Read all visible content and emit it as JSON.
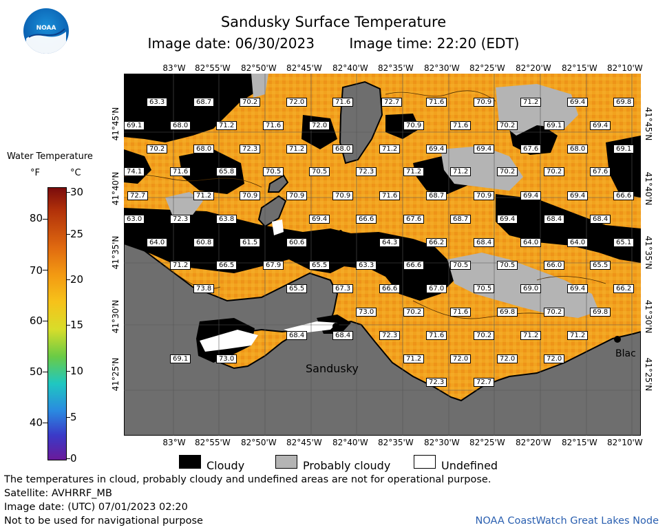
{
  "header": {
    "logo_text": "NOAA",
    "title": "Sandusky Surface Temperature",
    "image_date_local": "Image date: 06/30/2023",
    "image_time_local": "Image time: 22:20 (EDT)"
  },
  "colorbar": {
    "title": "Water Temperature",
    "unit_f": "°F",
    "unit_c": "°C",
    "f_ticks": [
      "80",
      "70",
      "60",
      "50",
      "40"
    ],
    "c_ticks": [
      "30",
      "25",
      "20",
      "15",
      "10",
      "5",
      "0"
    ]
  },
  "axes": {
    "lon_labels": [
      "83°W",
      "82°55'W",
      "82°50'W",
      "82°45'W",
      "82°40'W",
      "82°35'W",
      "82°30'W",
      "82°25'W",
      "82°20'W",
      "82°15'W",
      "82°10'W"
    ],
    "lat_labels": [
      "41°45'N",
      "41°40'N",
      "41°35'N",
      "41°30'N",
      "41°25'N"
    ]
  },
  "places": {
    "sandusky": "Sandusky",
    "blac": "Blac"
  },
  "temperature_labels": [
    "63.3",
    "68.7",
    "70.2",
    "72.0",
    "71.6",
    "72.7",
    "71.6",
    "70.9",
    "71.2",
    "69.4",
    "69.8",
    "69.1",
    "68.0",
    "71.2",
    "71.6",
    "72.0",
    "70.9",
    "71.6",
    "70.2",
    "69.1",
    "69.4",
    "70.2",
    "68.0",
    "72.3",
    "71.2",
    "68.0",
    "71.2",
    "69.4",
    "69.4",
    "67.6",
    "68.0",
    "69.1",
    "74.1",
    "71.6",
    "65.8",
    "70.5",
    "70.5",
    "72.3",
    "71.2",
    "71.2",
    "70.2",
    "70.2",
    "67.6",
    "72.7",
    "71.2",
    "70.9",
    "70.9",
    "70.9",
    "71.6",
    "68.7",
    "70.9",
    "69.4",
    "69.4",
    "66.6",
    "63.0",
    "72.3",
    "63.8",
    "69.4",
    "66.6",
    "67.6",
    "68.7",
    "69.4",
    "68.4",
    "68.4",
    "64.0",
    "60.8",
    "61.5",
    "60.6",
    "64.3",
    "66.2",
    "68.4",
    "64.0",
    "64.0",
    "65.1",
    "71.2",
    "66.5",
    "67.9",
    "65.5",
    "63.3",
    "66.6",
    "70.5",
    "70.5",
    "66.0",
    "65.5",
    "73.8",
    "65.5",
    "67.3",
    "66.6",
    "67.0",
    "70.5",
    "69.0",
    "69.4",
    "66.2",
    "73.0",
    "70.2",
    "71.6",
    "69.8",
    "70.2",
    "69.8",
    "68.4",
    "68.4",
    "72.3",
    "71.6",
    "70.2",
    "71.2",
    "71.2",
    "69.1",
    "73.0",
    "71.2",
    "72.0",
    "72.0",
    "72.0",
    "72.3",
    "72.7"
  ],
  "legend": {
    "cloudy": "Cloudy",
    "probably_cloudy": "Probably cloudy",
    "undefined": "Undefined"
  },
  "notes": {
    "disclaimer": "The temperatures in cloud, probably cloudy and undefined areas are not for operational purpose.",
    "satellite": "Satellite: AVHRRF_MB",
    "utc_date": "Image date: (UTC) 07/01/2023  02:20",
    "nav": "Not to be used for navigational purpose",
    "credit": "NOAA CoastWatch Great Lakes Node"
  },
  "colors": {
    "water_warm": "#f2a21e",
    "water_hot": "#ee8a14",
    "land": "#6e6e6e",
    "cloudy": "#000000",
    "probably_cloudy": "#b4b4b4",
    "undefined": "#ffffff"
  }
}
